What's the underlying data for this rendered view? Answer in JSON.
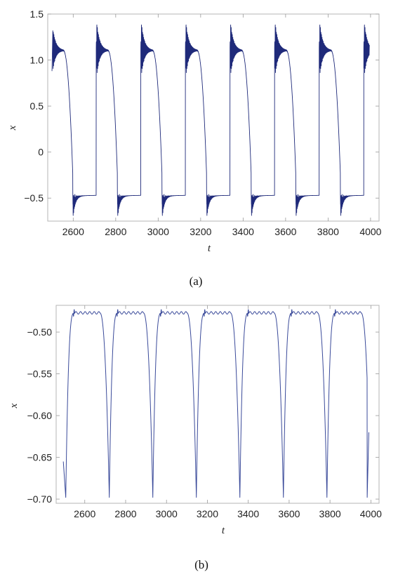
{
  "chart_data": [
    {
      "id": "a",
      "type": "line",
      "caption": "(a)",
      "xlabel": "t",
      "ylabel": "x",
      "xlim": [
        2480,
        4040
      ],
      "ylim": [
        -0.75,
        1.5
      ],
      "xticks": [
        2600,
        2800,
        3000,
        3200,
        3400,
        3600,
        3800,
        4000
      ],
      "xtick_labels": [
        "2600",
        "2800",
        "3000",
        "3200",
        "3400",
        "3600",
        "3800",
        "4000"
      ],
      "yticks": [
        -0.5,
        0,
        0.5,
        1.0,
        1.5
      ],
      "ytick_labels": [
        "−0.5",
        "0",
        "0.5",
        "1.0",
        "1.5"
      ],
      "grid": false,
      "line_color": "#1f2a7a",
      "series": [
        {
          "t_start": 2500,
          "t_end": 3995,
          "period": 210,
          "high_level": 1.1,
          "low_level": -0.47,
          "peak_max": 1.46,
          "trough_min": -0.68,
          "start_value": 0.88
        }
      ]
    },
    {
      "id": "b",
      "type": "line",
      "caption": "(b)",
      "xlabel": "t",
      "ylabel": "x",
      "xlim": [
        2460,
        4040
      ],
      "ylim": [
        -0.705,
        -0.468
      ],
      "xticks": [
        2600,
        2800,
        3000,
        3200,
        3400,
        3600,
        3800,
        4000
      ],
      "xtick_labels": [
        "2600",
        "2800",
        "3000",
        "3200",
        "3400",
        "3600",
        "3800",
        "4000"
      ],
      "yticks": [
        -0.7,
        -0.65,
        -0.6,
        -0.55,
        -0.5
      ],
      "ytick_labels": [
        "−0.70",
        "−0.65",
        "−0.60",
        "−0.55",
        "−0.50"
      ],
      "grid": false,
      "line_color": "#3a4a9a",
      "series": [
        {
          "t_start": 2495,
          "t_end": 3990,
          "period": 213,
          "high_level": -0.477,
          "low_level": -0.698,
          "start_value": -0.655,
          "end_value": -0.62
        }
      ]
    }
  ]
}
